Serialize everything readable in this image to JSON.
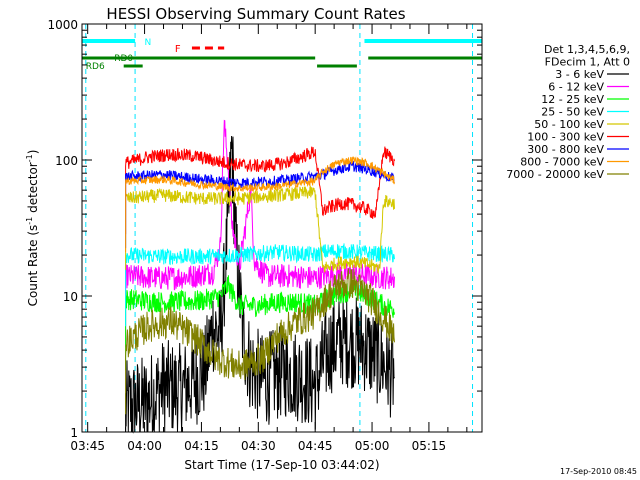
{
  "chart_data": {
    "type": "line",
    "title": "HESSI Observing Summary Count Rates",
    "xlabel": "Start Time (17-Sep-10 03:44:02)",
    "ylabel_main": "Count Rate (s",
    "ylabel_sup1": "-1",
    "ylabel_mid": " detector",
    "ylabel_sup2": "-1",
    "ylabel_end": ")",
    "yscale": "log",
    "ylim": [
      1,
      1000
    ],
    "y_ticks": [
      "1",
      "10",
      "100",
      "1000"
    ],
    "x_ticks": [
      "03:45",
      "04:00",
      "04:15",
      "04:30",
      "04:45",
      "05:00",
      "05:15"
    ],
    "x_tick_minutes": [
      0,
      15,
      30,
      45,
      60,
      75,
      90
    ],
    "xlim_minutes": [
      -1.5,
      104
    ],
    "timestamp": "17-Sep-2010 08:45",
    "legend_header": [
      "Det 1,3,4,5,6,9,",
      "FDecim 1, Att 0"
    ],
    "flags": {
      "N": "N",
      "F": "F",
      "RD0": "RD0",
      "RD6": "RD6"
    },
    "vertical_lines_minutes": [
      -0.5,
      12.5,
      71.8,
      101.5
    ],
    "series": [
      {
        "name": "3 - 6 keV",
        "color": "#000000",
        "samples": [
          [
            10,
            1.5
          ],
          [
            16,
            1.7
          ],
          [
            20,
            2.2
          ],
          [
            24,
            2.0
          ],
          [
            28,
            2.4
          ],
          [
            31,
            2.8
          ],
          [
            33,
            6
          ],
          [
            35,
            5
          ],
          [
            37,
            30
          ],
          [
            38,
            130
          ],
          [
            39,
            25
          ],
          [
            41,
            5
          ],
          [
            43,
            3
          ],
          [
            46,
            2.4
          ],
          [
            52,
            2.8
          ],
          [
            56,
            2.6
          ],
          [
            60,
            2.2
          ],
          [
            62,
            3.2
          ],
          [
            64,
            4.2
          ],
          [
            67,
            4.8
          ],
          [
            70,
            4.6
          ],
          [
            73,
            4.3
          ],
          [
            75,
            3.8
          ],
          [
            78,
            3.2
          ],
          [
            81,
            2.6
          ]
        ]
      },
      {
        "name": "6 - 12 keV",
        "color": "#ff00ff",
        "samples": [
          [
            10,
            14
          ],
          [
            20,
            13.5
          ],
          [
            28,
            14
          ],
          [
            33,
            15
          ],
          [
            35,
            23
          ],
          [
            36,
            190
          ],
          [
            37,
            90
          ],
          [
            38,
            35
          ],
          [
            40,
            16
          ],
          [
            43,
            60
          ],
          [
            44,
            18
          ],
          [
            47,
            14
          ],
          [
            55,
            14
          ],
          [
            60,
            13.5
          ],
          [
            62,
            14
          ],
          [
            66,
            14.5
          ],
          [
            70,
            14.5
          ],
          [
            75,
            14
          ],
          [
            81,
            13.5
          ]
        ]
      },
      {
        "name": "12 - 25 keV",
        "color": "#00ff00",
        "samples": [
          [
            10,
            9.5
          ],
          [
            20,
            9.0
          ],
          [
            30,
            9.2
          ],
          [
            35,
            10
          ],
          [
            37,
            12
          ],
          [
            40,
            8.5
          ],
          [
            45,
            8.5
          ],
          [
            50,
            9
          ],
          [
            55,
            9
          ],
          [
            60,
            8.5
          ],
          [
            62,
            9
          ],
          [
            66,
            10.5
          ],
          [
            70,
            11
          ],
          [
            74,
            10
          ],
          [
            78,
            8.5
          ],
          [
            81,
            8
          ]
        ]
      },
      {
        "name": "25 - 50 keV",
        "color": "#00ffff",
        "samples": [
          [
            10,
            20
          ],
          [
            20,
            19.5
          ],
          [
            30,
            19.5
          ],
          [
            40,
            20
          ],
          [
            50,
            21
          ],
          [
            60,
            20
          ],
          [
            62,
            21
          ],
          [
            66,
            21.5
          ],
          [
            70,
            21
          ],
          [
            75,
            20.5
          ],
          [
            81,
            20
          ]
        ]
      },
      {
        "name": "50 - 100 keV",
        "color": "#d4c800",
        "samples": [
          [
            10,
            52
          ],
          [
            20,
            55
          ],
          [
            30,
            52
          ],
          [
            40,
            52
          ],
          [
            50,
            55
          ],
          [
            60,
            58
          ],
          [
            62,
            16
          ],
          [
            66,
            17.5
          ],
          [
            70,
            18
          ],
          [
            74,
            17
          ],
          [
            77,
            16
          ],
          [
            78,
            50
          ],
          [
            81,
            48
          ]
        ]
      },
      {
        "name": "100 - 300 keV",
        "color": "#ff0000",
        "samples": [
          [
            10,
            95
          ],
          [
            16,
            105
          ],
          [
            22,
            110
          ],
          [
            28,
            107
          ],
          [
            34,
            98
          ],
          [
            40,
            92
          ],
          [
            46,
            90
          ],
          [
            52,
            95
          ],
          [
            58,
            110
          ],
          [
            60,
            115
          ],
          [
            62,
            42
          ],
          [
            64,
            45
          ],
          [
            67,
            48
          ],
          [
            70,
            47
          ],
          [
            73,
            44
          ],
          [
            76,
            40
          ],
          [
            78,
            115
          ],
          [
            81,
            100
          ]
        ]
      },
      {
        "name": "300 - 800 keV",
        "color": "#0000ff",
        "samples": [
          [
            10,
            75
          ],
          [
            20,
            78
          ],
          [
            30,
            72
          ],
          [
            40,
            68
          ],
          [
            50,
            70
          ],
          [
            60,
            76
          ],
          [
            62,
            78
          ],
          [
            66,
            86
          ],
          [
            70,
            90
          ],
          [
            74,
            85
          ],
          [
            78,
            78
          ],
          [
            81,
            72
          ]
        ]
      },
      {
        "name": "800 - 7000 keV",
        "color": "#ff9900",
        "samples": [
          [
            10,
            70
          ],
          [
            20,
            72
          ],
          [
            30,
            66
          ],
          [
            40,
            62
          ],
          [
            50,
            64
          ],
          [
            60,
            70
          ],
          [
            62,
            82
          ],
          [
            66,
            96
          ],
          [
            70,
            100
          ],
          [
            74,
            94
          ],
          [
            78,
            80
          ],
          [
            81,
            70
          ]
        ]
      },
      {
        "name": "7000 - 20000 keV",
        "color": "#808000",
        "samples": [
          [
            10,
            4.5
          ],
          [
            16,
            6
          ],
          [
            22,
            6.5
          ],
          [
            28,
            5
          ],
          [
            34,
            3.5
          ],
          [
            40,
            3
          ],
          [
            46,
            3.5
          ],
          [
            50,
            5
          ],
          [
            55,
            6.5
          ],
          [
            60,
            7.5
          ],
          [
            62,
            9
          ],
          [
            66,
            12
          ],
          [
            70,
            12.5
          ],
          [
            74,
            10
          ],
          [
            78,
            7
          ],
          [
            81,
            5
          ]
        ]
      }
    ]
  }
}
